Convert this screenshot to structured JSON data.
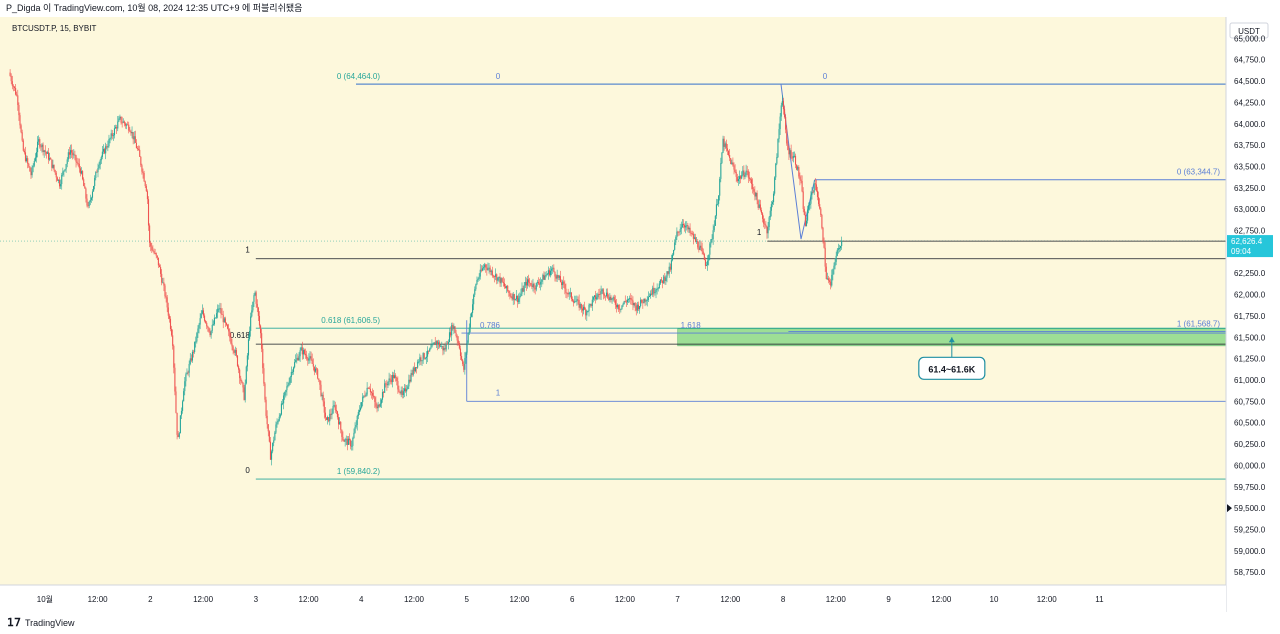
{
  "header": {
    "text": "P_Digda 이 TradingView.com, 10월 08, 2024 12:35 UTC+9 에 퍼블리쉬됐음"
  },
  "footer": {
    "brand": "TradingView"
  },
  "chart_data": {
    "type": "candlestick",
    "title": "BTCUSDT.P, 15, BYBIT",
    "currency": "USDT",
    "ylim": [
      58600,
      65250
    ],
    "y_ticks": [
      "65,000.0",
      "64,750.0",
      "64,500.0",
      "64,250.0",
      "64,000.0",
      "63,750.0",
      "63,500.0",
      "63,250.0",
      "63,000.0",
      "62,750.0",
      "62,500.0",
      "62,250.0",
      "62,000.0",
      "61,750.0",
      "61,500.0",
      "61,250.0",
      "61,000.0",
      "60,750.0",
      "60,500.0",
      "60,250.0",
      "60,000.0",
      "59,750.0",
      "59,500.0",
      "59,250.0",
      "59,000.0",
      "58,750.0"
    ],
    "x_range": [
      -0.35,
      11.2
    ],
    "x_ticks": [
      {
        "d": 0.0,
        "label": "10월"
      },
      {
        "d": 0.5,
        "label": "12:00"
      },
      {
        "d": 1.0,
        "label": "2"
      },
      {
        "d": 1.5,
        "label": "12:00"
      },
      {
        "d": 2.0,
        "label": "3"
      },
      {
        "d": 2.5,
        "label": "12:00"
      },
      {
        "d": 3.0,
        "label": "4"
      },
      {
        "d": 3.5,
        "label": "12:00"
      },
      {
        "d": 4.0,
        "label": "5"
      },
      {
        "d": 4.5,
        "label": "12:00"
      },
      {
        "d": 5.0,
        "label": "6"
      },
      {
        "d": 5.5,
        "label": "12:00"
      },
      {
        "d": 6.0,
        "label": "7"
      },
      {
        "d": 6.5,
        "label": "12:00"
      },
      {
        "d": 7.0,
        "label": "8"
      },
      {
        "d": 7.5,
        "label": "12:00"
      },
      {
        "d": 8.0,
        "label": "9"
      },
      {
        "d": 8.5,
        "label": "12:00"
      },
      {
        "d": 9.0,
        "label": "10"
      },
      {
        "d": 9.5,
        "label": "12:00"
      },
      {
        "d": 10.0,
        "label": "11"
      }
    ],
    "current_price": {
      "value": 62626.4,
      "label": "62,626.4",
      "countdown": "09:04"
    },
    "price_path": [
      {
        "d": -0.33,
        "p": 64600
      },
      {
        "d": -0.25,
        "p": 64300
      },
      {
        "d": -0.2,
        "p": 63700
      },
      {
        "d": -0.12,
        "p": 63400
      },
      {
        "d": -0.05,
        "p": 63800
      },
      {
        "d": 0.05,
        "p": 63600
      },
      {
        "d": 0.15,
        "p": 63300
      },
      {
        "d": 0.25,
        "p": 63700
      },
      {
        "d": 0.35,
        "p": 63450
      },
      {
        "d": 0.42,
        "p": 63000
      },
      {
        "d": 0.52,
        "p": 63550
      },
      {
        "d": 0.62,
        "p": 63800
      },
      {
        "d": 0.72,
        "p": 64050
      },
      {
        "d": 0.82,
        "p": 63950
      },
      {
        "d": 0.9,
        "p": 63650
      },
      {
        "d": 0.98,
        "p": 63200
      },
      {
        "d": 1.0,
        "p": 62600
      },
      {
        "d": 1.08,
        "p": 62400
      },
      {
        "d": 1.15,
        "p": 62000
      },
      {
        "d": 1.22,
        "p": 61500
      },
      {
        "d": 1.25,
        "p": 60700
      },
      {
        "d": 1.27,
        "p": 60250
      },
      {
        "d": 1.33,
        "p": 60950
      },
      {
        "d": 1.42,
        "p": 61350
      },
      {
        "d": 1.5,
        "p": 61800
      },
      {
        "d": 1.58,
        "p": 61550
      },
      {
        "d": 1.66,
        "p": 61850
      },
      {
        "d": 1.75,
        "p": 61550
      },
      {
        "d": 1.82,
        "p": 61300
      },
      {
        "d": 1.9,
        "p": 60800
      },
      {
        "d": 1.95,
        "p": 61600
      },
      {
        "d": 2.0,
        "p": 62050
      },
      {
        "d": 2.06,
        "p": 61500
      },
      {
        "d": 2.1,
        "p": 60700
      },
      {
        "d": 2.15,
        "p": 60100
      },
      {
        "d": 2.2,
        "p": 60450
      },
      {
        "d": 2.28,
        "p": 60800
      },
      {
        "d": 2.36,
        "p": 61150
      },
      {
        "d": 2.44,
        "p": 61350
      },
      {
        "d": 2.52,
        "p": 61250
      },
      {
        "d": 2.6,
        "p": 61050
      },
      {
        "d": 2.68,
        "p": 60500
      },
      {
        "d": 2.76,
        "p": 60700
      },
      {
        "d": 2.84,
        "p": 60300
      },
      {
        "d": 2.92,
        "p": 60250
      },
      {
        "d": 3.0,
        "p": 60700
      },
      {
        "d": 3.08,
        "p": 60950
      },
      {
        "d": 3.16,
        "p": 60650
      },
      {
        "d": 3.24,
        "p": 60950
      },
      {
        "d": 3.32,
        "p": 61050
      },
      {
        "d": 3.4,
        "p": 60800
      },
      {
        "d": 3.48,
        "p": 61050
      },
      {
        "d": 3.56,
        "p": 61250
      },
      {
        "d": 3.64,
        "p": 61300
      },
      {
        "d": 3.72,
        "p": 61450
      },
      {
        "d": 3.8,
        "p": 61350
      },
      {
        "d": 3.88,
        "p": 61650
      },
      {
        "d": 3.94,
        "p": 61400
      },
      {
        "d": 3.98,
        "p": 61100
      },
      {
        "d": 4.04,
        "p": 61700
      },
      {
        "d": 4.1,
        "p": 62150
      },
      {
        "d": 4.18,
        "p": 62350
      },
      {
        "d": 4.26,
        "p": 62250
      },
      {
        "d": 4.34,
        "p": 62150
      },
      {
        "d": 4.42,
        "p": 62000
      },
      {
        "d": 4.5,
        "p": 61950
      },
      {
        "d": 4.58,
        "p": 62150
      },
      {
        "d": 4.66,
        "p": 62100
      },
      {
        "d": 4.74,
        "p": 62200
      },
      {
        "d": 4.82,
        "p": 62300
      },
      {
        "d": 4.9,
        "p": 62150
      },
      {
        "d": 4.98,
        "p": 62000
      },
      {
        "d": 5.06,
        "p": 61900
      },
      {
        "d": 5.14,
        "p": 61800
      },
      {
        "d": 5.22,
        "p": 61950
      },
      {
        "d": 5.3,
        "p": 62050
      },
      {
        "d": 5.38,
        "p": 61950
      },
      {
        "d": 5.46,
        "p": 61850
      },
      {
        "d": 5.54,
        "p": 61950
      },
      {
        "d": 5.62,
        "p": 61850
      },
      {
        "d": 5.7,
        "p": 61950
      },
      {
        "d": 5.78,
        "p": 62050
      },
      {
        "d": 5.86,
        "p": 62150
      },
      {
        "d": 5.94,
        "p": 62300
      },
      {
        "d": 6.0,
        "p": 62700
      },
      {
        "d": 6.06,
        "p": 62850
      },
      {
        "d": 6.14,
        "p": 62700
      },
      {
        "d": 6.22,
        "p": 62550
      },
      {
        "d": 6.28,
        "p": 62350
      },
      {
        "d": 6.34,
        "p": 62700
      },
      {
        "d": 6.4,
        "p": 63200
      },
      {
        "d": 6.44,
        "p": 63800
      },
      {
        "d": 6.5,
        "p": 63600
      },
      {
        "d": 6.58,
        "p": 63350
      },
      {
        "d": 6.66,
        "p": 63450
      },
      {
        "d": 6.74,
        "p": 63200
      },
      {
        "d": 6.8,
        "p": 62950
      },
      {
        "d": 6.86,
        "p": 62750
      },
      {
        "d": 6.92,
        "p": 63200
      },
      {
        "d": 6.98,
        "p": 64050
      },
      {
        "d": 7.0,
        "p": 64350
      },
      {
        "d": 7.05,
        "p": 63700
      },
      {
        "d": 7.12,
        "p": 63600
      },
      {
        "d": 7.18,
        "p": 63300
      },
      {
        "d": 7.22,
        "p": 62800
      },
      {
        "d": 7.28,
        "p": 63200
      },
      {
        "d": 7.32,
        "p": 63300
      },
      {
        "d": 7.38,
        "p": 62800
      },
      {
        "d": 7.42,
        "p": 62200
      },
      {
        "d": 7.46,
        "p": 62100
      },
      {
        "d": 7.5,
        "p": 62400
      },
      {
        "d": 7.56,
        "p": 62626
      }
    ],
    "fib_tools": [
      {
        "name": "fib-retracement-1",
        "color": "#26a69a",
        "x_start": 2.0,
        "x_end": 11.2,
        "levels": [
          {
            "value": 64464.0,
            "label": "0 (64,464.0)"
          },
          {
            "value": 61606.5,
            "label": "0.618 (61,606.5)"
          },
          {
            "value": 59840.2,
            "label": "1 (59,840.2)"
          }
        ]
      },
      {
        "name": "fib-retracement-2",
        "color": "#5b7fd6",
        "x_start": 4.0,
        "x_end": 11.2,
        "levels": [
          {
            "value": 64464.0,
            "label": "0"
          },
          {
            "value": 61550.0,
            "label": "0.786"
          },
          {
            "value": 60750.0,
            "label": "1"
          }
        ]
      },
      {
        "name": "fib-extension-3",
        "color": "#5b7fd6",
        "x_start": 7.2,
        "x_end": 11.2,
        "levels": [
          {
            "value": 64464.0,
            "label": "0"
          },
          {
            "value": 63344.7,
            "label": "0 (63,344.7)"
          },
          {
            "value": 61568.7,
            "label": "1 (61,568.7)"
          }
        ]
      }
    ],
    "black_levels": [
      {
        "value": 62420,
        "label": "1",
        "x_start": 2.0
      },
      {
        "value": 61420,
        "label": "0.618",
        "x_start": 2.0
      },
      {
        "value": 62626.4,
        "label": "1",
        "x_start": 6.85
      }
    ],
    "extension_label": "1.618",
    "zone": {
      "low": 61400,
      "high": 61600,
      "color": "#7ed67e",
      "x_start": 6.0
    },
    "callout": {
      "text": "61.4~61.6K",
      "value": 61500,
      "d": 8.6
    }
  }
}
